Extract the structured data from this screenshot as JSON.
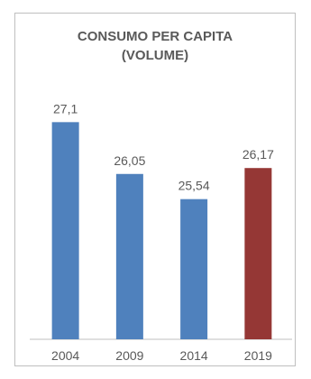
{
  "chart_data": {
    "type": "bar",
    "title_lines": [
      "CONSUMO PER CAPITA",
      "(VOLUME)"
    ],
    "categories": [
      "2004",
      "2009",
      "2014",
      "2019"
    ],
    "values": [
      27.1,
      26.05,
      25.54,
      26.17
    ],
    "value_labels": [
      "27,1",
      "26,05",
      "25,54",
      "26,17"
    ],
    "colors": [
      "#4f81bd",
      "#4f81bd",
      "#4f81bd",
      "#953735"
    ],
    "xlabel": "",
    "ylabel": "",
    "ylim": [
      22.7,
      27.6
    ],
    "grid": false,
    "legend": "none"
  }
}
